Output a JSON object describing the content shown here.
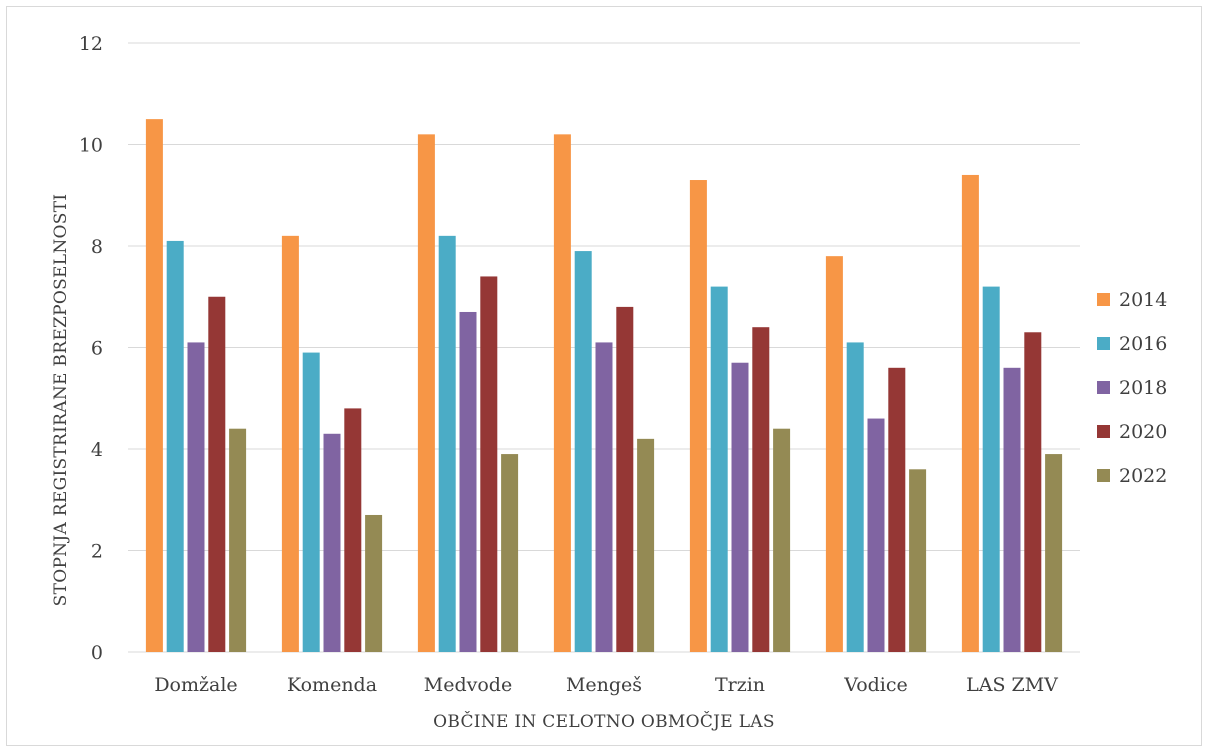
{
  "chart_data": {
    "type": "bar",
    "title": "",
    "xlabel": "OBČINE IN CELOTNO OBMOČJE LAS",
    "ylabel": "STOPNJA REGISTRIRANE BREZPOSELNOSTI",
    "ylim": [
      0,
      12
    ],
    "yticks": [
      0,
      2,
      4,
      6,
      8,
      10,
      12
    ],
    "grid": true,
    "legend_position": "right",
    "categories": [
      "Domžale",
      "Komenda",
      "Medvode",
      "Mengeš",
      "Trzin",
      "Vodice",
      "LAS ZMV"
    ],
    "series": [
      {
        "name": "2014",
        "color": "#f79646",
        "values": [
          10.5,
          8.2,
          10.2,
          10.2,
          9.3,
          7.8,
          9.4
        ]
      },
      {
        "name": "2016",
        "color": "#4bacc6",
        "values": [
          8.1,
          5.9,
          8.2,
          7.9,
          7.2,
          6.1,
          7.2
        ]
      },
      {
        "name": "2018",
        "color": "#8064a2",
        "values": [
          6.1,
          4.3,
          6.7,
          6.1,
          5.7,
          4.6,
          5.6
        ]
      },
      {
        "name": "2020",
        "color": "#953735",
        "values": [
          7.0,
          4.8,
          7.4,
          6.8,
          6.4,
          5.6,
          6.3
        ]
      },
      {
        "name": "2022",
        "color": "#948a54",
        "values": [
          4.4,
          2.7,
          3.9,
          4.2,
          4.4,
          3.6,
          3.9
        ]
      }
    ]
  }
}
